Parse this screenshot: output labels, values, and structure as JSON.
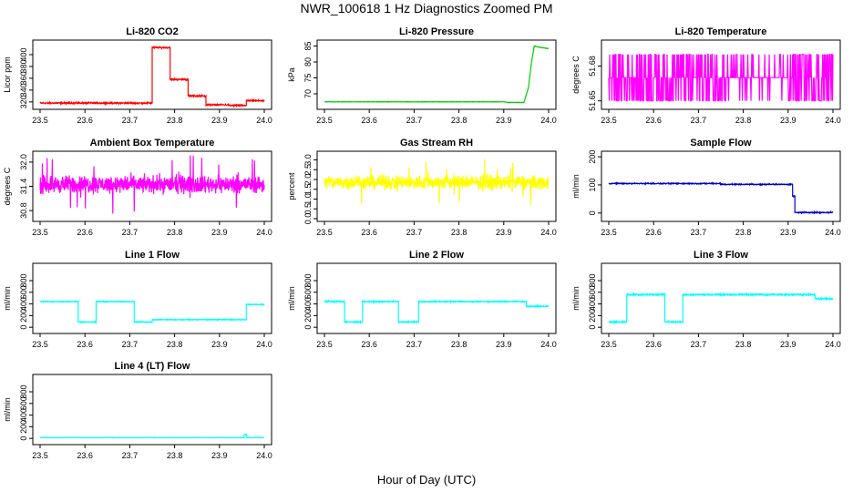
{
  "figure": {
    "title": "NWR_100618  1 Hz Diagnostics Zoomed PM",
    "xlabel": "Hour of Day (UTC)"
  },
  "chart_data": [
    {
      "type": "line",
      "title": "Li-820 CO2",
      "ylabel": "Licor ppm",
      "color": "#ff0000",
      "xlim": [
        23.5,
        24.0
      ],
      "ylim": [
        312,
        420
      ],
      "xticks": [
        "23.5",
        "23.6",
        "23.7",
        "23.8",
        "23.9",
        "24.0"
      ],
      "yticks": [
        "320",
        "340",
        "360",
        "380",
        "400"
      ],
      "segments": [
        [
          23.5,
          23.7,
          318
        ],
        [
          23.7,
          23.75,
          318
        ],
        [
          23.75,
          23.79,
          412
        ],
        [
          23.79,
          23.83,
          358
        ],
        [
          23.83,
          23.87,
          330
        ],
        [
          23.87,
          23.92,
          315
        ],
        [
          23.92,
          23.96,
          314
        ],
        [
          23.96,
          24.0,
          322
        ]
      ],
      "noise": 1
    },
    {
      "type": "line",
      "title": "Li-820 Pressure",
      "ylabel": "kPa",
      "color": "#00cc00",
      "xlim": [
        23.5,
        24.0
      ],
      "ylim": [
        66,
        86
      ],
      "xticks": [
        "23.5",
        "23.6",
        "23.7",
        "23.8",
        "23.9",
        "24.0"
      ],
      "yticks": [
        "70",
        "75",
        "80",
        "85"
      ],
      "points": [
        [
          23.5,
          67.5
        ],
        [
          23.9,
          67.5
        ],
        [
          23.91,
          67.3
        ],
        [
          23.945,
          67.3
        ],
        [
          23.955,
          72
        ],
        [
          23.962,
          80
        ],
        [
          23.968,
          85
        ],
        [
          23.98,
          84.6
        ],
        [
          24.0,
          84.2
        ]
      ],
      "noise": 0.05
    },
    {
      "type": "line",
      "title": "Li-820 Temperature",
      "ylabel": "degrees C",
      "color": "#ff00ff",
      "xlim": [
        23.5,
        24.0
      ],
      "ylim": [
        51.645,
        51.7
      ],
      "xticks": [
        "23.5",
        "23.6",
        "23.7",
        "23.8",
        "23.9",
        "24.0"
      ],
      "yticks": [
        "51.65",
        "51.68"
      ],
      "levels": [
        51.65,
        51.67,
        51.69
      ],
      "pattern": "toggle"
    },
    {
      "type": "line",
      "title": "Ambient Box Temperature",
      "ylabel": "degrees C",
      "color": "#ff00ff",
      "xlim": [
        23.5,
        24.0
      ],
      "ylim": [
        30.6,
        32.2
      ],
      "xticks": [
        "23.5",
        "23.6",
        "23.7",
        "23.8",
        "23.9",
        "24.0"
      ],
      "yticks": [
        "30.8",
        "31.4",
        "32.0"
      ],
      "mean": 31.45,
      "noise": 0.3,
      "pattern": "noise"
    },
    {
      "type": "line",
      "title": "Gas Stream RH",
      "ylabel": "percent",
      "color": "#ffff00",
      "xlim": [
        23.5,
        24.0
      ],
      "ylim": [
        0,
        3.3
      ],
      "xticks": [
        "23.5",
        "23.6",
        "23.7",
        "23.8",
        "23.9",
        "24.0"
      ],
      "yticks": [
        "0.0",
        "0.5",
        "1.0",
        "1.5",
        "2.0",
        "2.5",
        "3.0"
      ],
      "mean": 1.85,
      "noise": 0.5,
      "pattern": "noise"
    },
    {
      "type": "line",
      "title": "Sample Flow",
      "ylabel": "ml/min",
      "color": "#0000cc",
      "xlim": [
        23.5,
        24.0
      ],
      "ylim": [
        -20,
        210
      ],
      "xticks": [
        "23.5",
        "23.6",
        "23.7",
        "23.8",
        "23.9",
        "24.0"
      ],
      "yticks": [
        "0",
        "100",
        "200"
      ],
      "segments": [
        [
          23.5,
          23.75,
          105
        ],
        [
          23.75,
          23.91,
          102
        ],
        [
          23.91,
          23.915,
          60
        ],
        [
          23.915,
          24.0,
          2
        ]
      ],
      "noise": 1.5
    },
    {
      "type": "line",
      "title": "Line 1 Flow",
      "ylabel": "ml/min",
      "color": "#00ffff",
      "xlim": [
        23.5,
        24.0
      ],
      "ylim": [
        -60,
        1050
      ],
      "xticks": [
        "23.5",
        "23.6",
        "23.7",
        "23.8",
        "23.9",
        "24.0"
      ],
      "yticks": [
        "0",
        "200",
        "400",
        "600",
        "800"
      ],
      "segments": [
        [
          23.5,
          23.585,
          440
        ],
        [
          23.585,
          23.625,
          90
        ],
        [
          23.625,
          23.71,
          440
        ],
        [
          23.71,
          23.75,
          90
        ],
        [
          23.75,
          23.96,
          130
        ],
        [
          23.96,
          24.0,
          390
        ]
      ],
      "noise": 6
    },
    {
      "type": "line",
      "title": "Line 2 Flow",
      "ylabel": "ml/min",
      "color": "#00ffff",
      "xlim": [
        23.5,
        24.0
      ],
      "ylim": [
        -60,
        1050
      ],
      "xticks": [
        "23.5",
        "23.6",
        "23.7",
        "23.8",
        "23.9",
        "24.0"
      ],
      "yticks": [
        "0",
        "200",
        "400",
        "600",
        "800"
      ],
      "segments": [
        [
          23.5,
          23.545,
          440
        ],
        [
          23.545,
          23.585,
          90
        ],
        [
          23.585,
          23.665,
          440
        ],
        [
          23.665,
          23.71,
          90
        ],
        [
          23.71,
          23.95,
          440
        ],
        [
          23.95,
          24.0,
          360
        ]
      ],
      "noise": 8
    },
    {
      "type": "line",
      "title": "Line 3 Flow",
      "ylabel": "ml/min",
      "color": "#00ffff",
      "xlim": [
        23.5,
        24.0
      ],
      "ylim": [
        -60,
        1050
      ],
      "xticks": [
        "23.5",
        "23.6",
        "23.7",
        "23.8",
        "23.9",
        "24.0"
      ],
      "yticks": [
        "0",
        "200",
        "400",
        "600",
        "800"
      ],
      "segments": [
        [
          23.5,
          23.54,
          90
        ],
        [
          23.54,
          23.625,
          560
        ],
        [
          23.625,
          23.665,
          90
        ],
        [
          23.665,
          23.96,
          560
        ],
        [
          23.96,
          24.0,
          490
        ]
      ],
      "noise": 10
    },
    {
      "type": "line",
      "title": "Line 4 (LT) Flow",
      "ylabel": "ml/min",
      "color": "#00ffff",
      "xlim": [
        23.5,
        24.0
      ],
      "ylim": [
        -60,
        1050
      ],
      "xticks": [
        "23.5",
        "23.6",
        "23.7",
        "23.8",
        "23.9",
        "24.0"
      ],
      "yticks": [
        "0",
        "200",
        "400",
        "600",
        "800"
      ],
      "segments": [
        [
          23.5,
          23.955,
          12
        ],
        [
          23.955,
          23.96,
          70
        ],
        [
          23.96,
          24.0,
          12
        ]
      ],
      "noise": 2
    }
  ]
}
